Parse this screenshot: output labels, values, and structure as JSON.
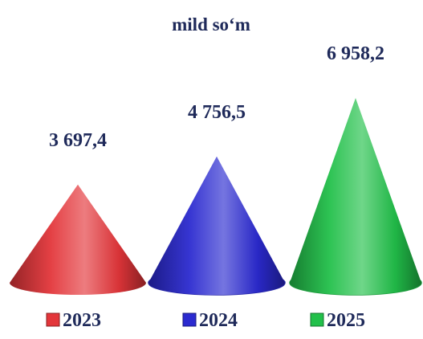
{
  "chart_data": {
    "type": "bar",
    "title": "mild so‘m",
    "categories": [
      "2023",
      "2024",
      "2025"
    ],
    "values": [
      3697.4,
      4756.5,
      6958.2
    ],
    "value_labels": [
      "3 697,4",
      "4 756,5",
      "6 958,2"
    ],
    "series": [
      {
        "values": [
          3697.4,
          4756.5,
          6958.2
        ],
        "colors": [
          "#e3363a",
          "#2b2ad0",
          "#22c04a"
        ]
      }
    ],
    "shape": "cone",
    "legend_position": "bottom",
    "grid": false,
    "text_color": "#1f2a5a"
  }
}
